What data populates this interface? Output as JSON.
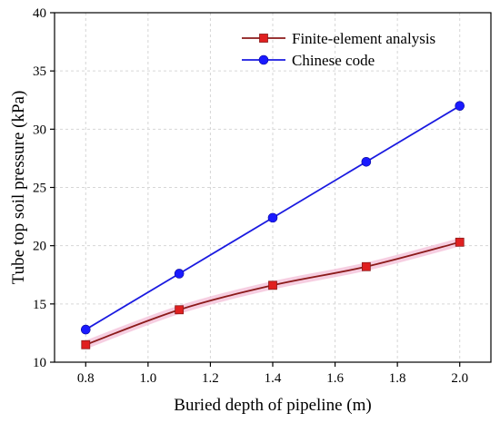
{
  "chart_data": {
    "type": "line",
    "xlabel": "Buried depth of pipeline (m)",
    "ylabel": "Tube top soil pressure (kPa)",
    "xlim": [
      0.7,
      2.1
    ],
    "ylim": [
      10,
      40
    ],
    "x_ticks": [
      0.8,
      1.0,
      1.2,
      1.4,
      1.6,
      1.8,
      2.0
    ],
    "y_ticks": [
      10,
      15,
      20,
      25,
      30,
      35,
      40
    ],
    "x_tick_labels": [
      "0.8",
      "1.0",
      "1.2",
      "1.4",
      "1.6",
      "1.8",
      "2.0"
    ],
    "y_tick_labels": [
      "10",
      "15",
      "20",
      "25",
      "30",
      "35",
      "40"
    ],
    "grid": true,
    "legend_position": "top-right",
    "x": [
      0.8,
      1.1,
      1.4,
      1.7,
      2.0
    ],
    "series": [
      {
        "name": "Finite-element analysis",
        "values": [
          11.5,
          14.5,
          16.6,
          18.2,
          20.3
        ],
        "color": "#8b1a1a",
        "marker_color": "#e02020",
        "marker": "square",
        "smooth": true
      },
      {
        "name": "Chinese code",
        "values": [
          12.8,
          17.6,
          22.4,
          27.2,
          32.0
        ],
        "color": "#1a1ae0",
        "marker_color": "#1a1aff",
        "marker": "circle",
        "smooth": false
      }
    ]
  }
}
